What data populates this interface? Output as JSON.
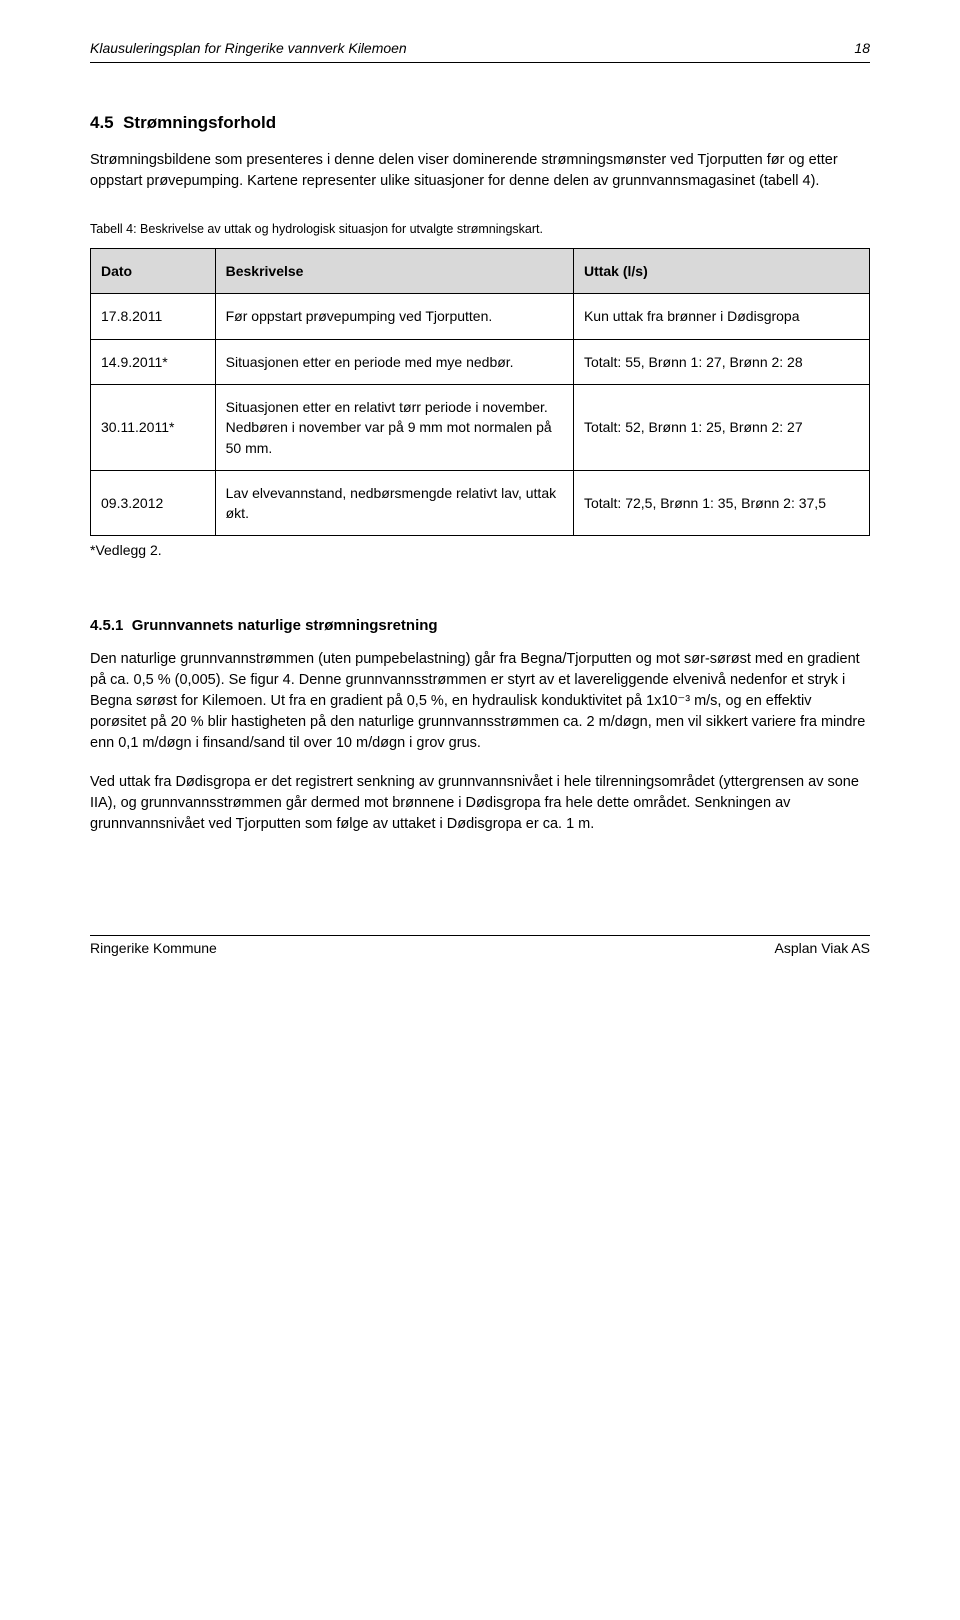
{
  "header": {
    "title": "Klausuleringsplan for Ringerike vannverk Kilemoen",
    "page": "18"
  },
  "section45": {
    "number": "4.5",
    "title": "Strømningsforhold",
    "para1": "Strømningsbildene som presenteres i denne delen viser dominerende strømningsmønster ved Tjorputten før og etter oppstart prøvepumping. Kartene representer ulike situasjoner for denne delen av grunnvannsmagasinet (tabell 4)."
  },
  "table4": {
    "caption": "Tabell 4: Beskrivelse av uttak og hydrologisk situasjon for utvalgte strømningskart.",
    "headers": {
      "c1": "Dato",
      "c2": "Beskrivelse",
      "c3": "Uttak (l/s)"
    },
    "rows": [
      {
        "date": "17.8.2011",
        "desc": "Før oppstart prøvepumping ved Tjorputten.",
        "uttak": "Kun uttak fra brønner i Dødisgropa"
      },
      {
        "date": "14.9.2011*",
        "desc": "Situasjonen etter en periode med mye nedbør.",
        "uttak": "Totalt: 55, Brønn 1: 27, Brønn 2: 28"
      },
      {
        "date": "30.11.2011*",
        "desc": "Situasjonen etter en relativt tørr periode i november. Nedbøren i november var på 9 mm mot normalen på 50 mm.",
        "uttak": "Totalt: 52, Brønn 1: 25, Brønn 2: 27"
      },
      {
        "date": "09.3.2012",
        "desc": "Lav elvevannstand, nedbørsmengde relativt lav, uttak økt.",
        "uttak": "Totalt: 72,5, Brønn 1: 35, Brønn 2: 37,5"
      }
    ],
    "footnote": "*Vedlegg 2."
  },
  "section451": {
    "number": "4.5.1",
    "title": "Grunnvannets naturlige strømningsretning",
    "para1": "Den naturlige grunnvannstrømmen (uten pumpebelastning) går fra Begna/Tjorputten og mot sør-sørøst med en gradient på ca. 0,5 % (0,005). Se figur 4. Denne grunnvannsstrømmen er styrt av et lavereliggende elvenivå nedenfor et stryk i Begna sørøst for Kilemoen. Ut fra en gradient på 0,5 %, en hydraulisk konduktivitet på 1x10⁻³ m/s, og en effektiv porøsitet på 20 % blir hastigheten på den naturlige grunnvannsstrømmen ca. 2 m/døgn, men vil sikkert variere fra mindre enn 0,1 m/døgn i finsand/sand til over 10 m/døgn i grov grus.",
    "para2": "Ved uttak fra Dødisgropa er det registrert senkning av grunnvannsnivået i hele tilrenningsområdet (yttergrensen av sone IIA), og grunnvannsstrømmen går dermed mot brønnene i Dødisgropa fra hele dette området. Senkningen av grunnvannsnivået ved Tjorputten som følge av uttaket i Dødisgropa er ca. 1 m."
  },
  "footer": {
    "left": "Ringerike Kommune",
    "right": "Asplan Viak AS"
  }
}
